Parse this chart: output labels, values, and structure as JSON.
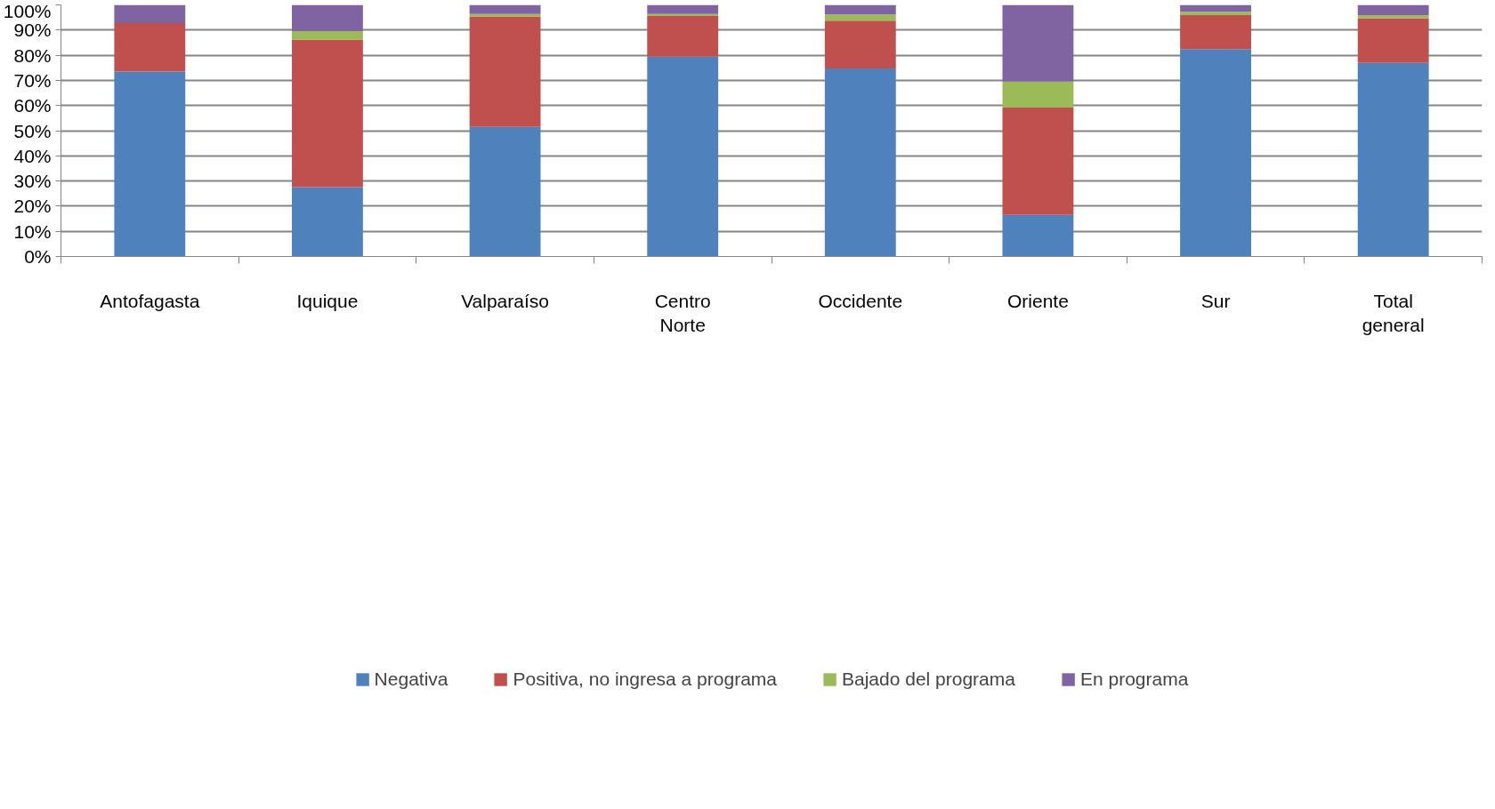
{
  "chart_data": {
    "type": "bar",
    "stacked": true,
    "categories": [
      "Antofagasta",
      "Iquique",
      "Valparaíso",
      "Centro Norte",
      "Occidente",
      "Oriente",
      "Sur",
      "Total general"
    ],
    "series": [
      {
        "name": "Negativa",
        "color": "#4f81bd",
        "values": [
          73.5,
          27.6,
          51.5,
          79.4,
          74.7,
          16.5,
          82.4,
          76.9
        ]
      },
      {
        "name": "Positiva, no ingresa a programa",
        "color": "#c0504d",
        "values": [
          19.3,
          58.6,
          43.9,
          16.2,
          19.0,
          42.7,
          13.5,
          17.8
        ]
      },
      {
        "name": "Bajado del programa",
        "color": "#9bbb59",
        "values": [
          0,
          3.4,
          1.0,
          0.8,
          2.5,
          10.3,
          1.4,
          1.2
        ]
      },
      {
        "name": "En programa",
        "color": "#8064a2",
        "values": [
          7.2,
          10.4,
          3.6,
          3.6,
          3.8,
          30.5,
          2.7,
          4.1
        ]
      }
    ],
    "ylim": [
      0,
      100
    ],
    "yticks": [
      {
        "value": 0,
        "label": "0%"
      },
      {
        "value": 10,
        "label": "10%"
      },
      {
        "value": 20,
        "label": "20%"
      },
      {
        "value": 30,
        "label": "30%"
      },
      {
        "value": 40,
        "label": "40%"
      },
      {
        "value": 50,
        "label": "50%"
      },
      {
        "value": 60,
        "label": "60%"
      },
      {
        "value": 70,
        "label": "70%"
      },
      {
        "value": 80,
        "label": "80%"
      },
      {
        "value": 90,
        "label": "90%"
      },
      {
        "value": 100,
        "label": "100%"
      }
    ],
    "grid": "y",
    "legend": "bottom"
  }
}
